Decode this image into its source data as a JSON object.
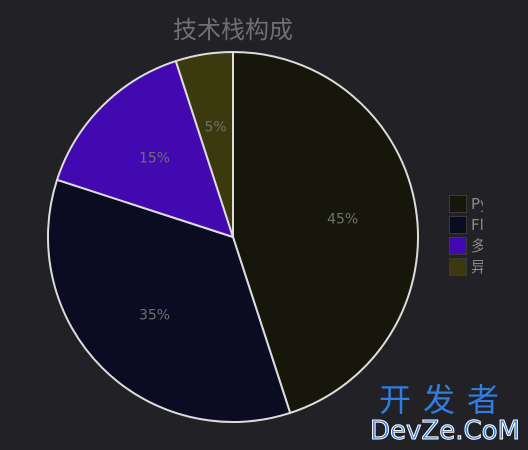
{
  "chart_data": {
    "type": "pie",
    "title": "技术栈构成",
    "labels": [
      "Py",
      "Fl",
      "多",
      "异"
    ],
    "values": [
      45,
      35,
      15,
      5
    ],
    "value_labels": [
      "45%",
      "35%",
      "15%",
      "5%"
    ],
    "colors": [
      "#16160a",
      "#0b0b22",
      "#4209b0",
      "#3b3a0e"
    ],
    "edge_color": "#dcdcdc",
    "start_angle_deg": 90,
    "direction": "clockwise",
    "legend_position": "right",
    "grid": false
  },
  "watermark": {
    "cn": "开发者",
    "en": "DevZe.CoM"
  }
}
